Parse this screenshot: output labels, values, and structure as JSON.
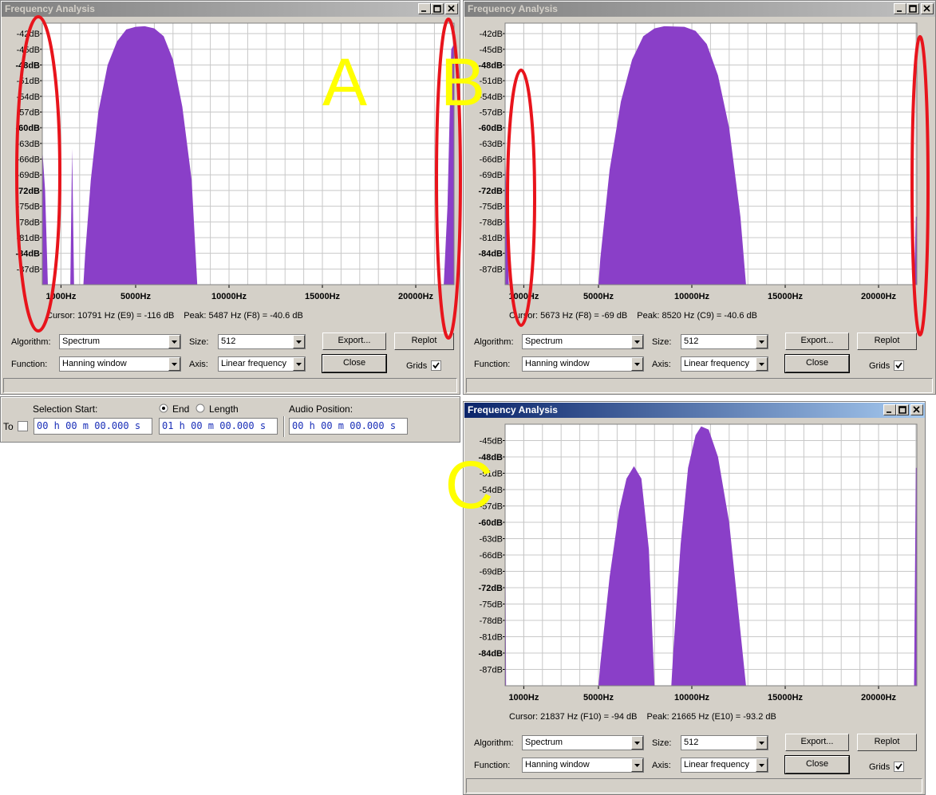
{
  "windows": [
    {
      "title": "Frequency Analysis",
      "label": "A",
      "plot": {
        "color": "#8a3fc8",
        "xlim": [
          0,
          22050
        ],
        "ylim": [
          -90,
          -40
        ],
        "yticks": [
          {
            "value": -42,
            "label": "-42dB"
          },
          {
            "value": -45,
            "label": "-45dB"
          },
          {
            "value": -48,
            "label": "-48dB"
          },
          {
            "value": -51,
            "label": "-51dB"
          },
          {
            "value": -54,
            "label": "-54dB"
          },
          {
            "value": -57,
            "label": "-57dB"
          },
          {
            "value": -60,
            "label": "-60dB"
          },
          {
            "value": -63,
            "label": "-63dB"
          },
          {
            "value": -66,
            "label": "-66dB"
          },
          {
            "value": -69,
            "label": "-69dB"
          },
          {
            "value": -72,
            "label": "-72dB"
          },
          {
            "value": -75,
            "label": "-75dB"
          },
          {
            "value": -78,
            "label": "-78dB"
          },
          {
            "value": -81,
            "label": "-81dB"
          },
          {
            "value": -84,
            "label": "-84dB"
          },
          {
            "value": -87,
            "label": "-87dB"
          }
        ],
        "xticks": [
          {
            "value": 1000,
            "label": "1000Hz"
          },
          {
            "value": 5000,
            "label": "5000Hz"
          },
          {
            "value": 10000,
            "label": "10000Hz"
          },
          {
            "value": 15000,
            "label": "15000Hz"
          },
          {
            "value": 20000,
            "label": "20000Hz"
          }
        ],
        "x": [
          0,
          150,
          300,
          1500,
          1600,
          1700,
          2200,
          2300,
          2600,
          3000,
          3500,
          4000,
          4500,
          5000,
          5487,
          6000,
          6500,
          7000,
          7500,
          8000,
          8300,
          21500,
          21700,
          21900,
          22050
        ],
        "values": [
          -64,
          -72,
          -90,
          -90,
          -64,
          -90,
          -90,
          -84,
          -70,
          -57,
          -48,
          -43.5,
          -41.2,
          -40.7,
          -40.6,
          -41,
          -42.5,
          -47,
          -56,
          -70,
          -90,
          -90,
          -75,
          -45,
          -44
        ]
      },
      "cursor": "Cursor: 10791 Hz (E9) = -116 dB",
      "peak": "Peak: 5487 Hz (F8) = -40.6 dB",
      "controls": {
        "algorithm_label": "Algorithm:",
        "algorithm": "Spectrum",
        "size_label": "Size:",
        "size": "512",
        "export": "Export...",
        "replot": "Replot",
        "function_label": "Function:",
        "function": "Hanning window",
        "axis_label": "Axis:",
        "axis": "Linear frequency",
        "close": "Close",
        "grids": "Grids"
      }
    },
    {
      "title": "Frequency Analysis",
      "label": "B",
      "plot": {
        "color": "#8a3fc8",
        "xlim": [
          0,
          22050
        ],
        "ylim": [
          -90,
          -40
        ],
        "yticks": [
          {
            "value": -42,
            "label": "-42dB"
          },
          {
            "value": -45,
            "label": "-45dB"
          },
          {
            "value": -48,
            "label": "-48dB"
          },
          {
            "value": -51,
            "label": "-51dB"
          },
          {
            "value": -54,
            "label": "-54dB"
          },
          {
            "value": -57,
            "label": "-57dB"
          },
          {
            "value": -60,
            "label": "-60dB"
          },
          {
            "value": -63,
            "label": "-63dB"
          },
          {
            "value": -66,
            "label": "-66dB"
          },
          {
            "value": -69,
            "label": "-69dB"
          },
          {
            "value": -72,
            "label": "-72dB"
          },
          {
            "value": -75,
            "label": "-75dB"
          },
          {
            "value": -78,
            "label": "-78dB"
          },
          {
            "value": -81,
            "label": "-81dB"
          },
          {
            "value": -84,
            "label": "-84dB"
          },
          {
            "value": -87,
            "label": "-87dB"
          }
        ],
        "xticks": [
          {
            "value": 1000,
            "label": "1000Hz"
          },
          {
            "value": 5000,
            "label": "5000Hz"
          },
          {
            "value": 10000,
            "label": "10000Hz"
          },
          {
            "value": 15000,
            "label": "15000Hz"
          },
          {
            "value": 20000,
            "label": "20000Hz"
          }
        ],
        "x": [
          0,
          100,
          200,
          5000,
          5100,
          5600,
          6200,
          6800,
          7400,
          8000,
          8520,
          9600,
          10200,
          10800,
          11400,
          12000,
          12600,
          12900,
          21900,
          22000,
          22050
        ],
        "values": [
          -63,
          -80,
          -90,
          -90,
          -85,
          -68,
          -55,
          -47,
          -42.5,
          -41,
          -40.6,
          -40.7,
          -41.5,
          -44,
          -50,
          -60,
          -77,
          -90,
          -90,
          -77,
          -77
        ]
      },
      "cursor": "Cursor: 5673 Hz (F8) = -69 dB",
      "peak": "Peak: 8520 Hz (C9) = -40.6 dB",
      "controls": {
        "algorithm_label": "Algorithm:",
        "algorithm": "Spectrum",
        "size_label": "Size:",
        "size": "512",
        "export": "Export...",
        "replot": "Replot",
        "function_label": "Function:",
        "function": "Hanning window",
        "axis_label": "Axis:",
        "axis": "Linear frequency",
        "close": "Close",
        "grids": "Grids"
      }
    },
    {
      "title": "Frequency Analysis",
      "label": "C",
      "plot": {
        "color": "#8a3fc8",
        "xlim": [
          0,
          22050
        ],
        "ylim": [
          -90,
          -42
        ],
        "yticks": [
          {
            "value": -45,
            "label": "-45dB"
          },
          {
            "value": -48,
            "label": "-48dB"
          },
          {
            "value": -51,
            "label": "-51dB"
          },
          {
            "value": -54,
            "label": "-54dB"
          },
          {
            "value": -57,
            "label": "-57dB"
          },
          {
            "value": -60,
            "label": "-60dB"
          },
          {
            "value": -63,
            "label": "-63dB"
          },
          {
            "value": -66,
            "label": "-66dB"
          },
          {
            "value": -69,
            "label": "-69dB"
          },
          {
            "value": -72,
            "label": "-72dB"
          },
          {
            "value": -75,
            "label": "-75dB"
          },
          {
            "value": -78,
            "label": "-78dB"
          },
          {
            "value": -81,
            "label": "-81dB"
          },
          {
            "value": -84,
            "label": "-84dB"
          },
          {
            "value": -87,
            "label": "-87dB"
          }
        ],
        "xticks": [
          {
            "value": 1000,
            "label": "1000Hz"
          },
          {
            "value": 5000,
            "label": "5000Hz"
          },
          {
            "value": 10000,
            "label": "10000Hz"
          },
          {
            "value": 15000,
            "label": "15000Hz"
          },
          {
            "value": 20000,
            "label": "20000Hz"
          }
        ],
        "x": [
          0,
          50,
          5000,
          5100,
          5600,
          6100,
          6500,
          6900,
          7300,
          7700,
          8000,
          8900,
          9000,
          9400,
          9800,
          10200,
          10500,
          10900,
          11400,
          12000,
          12600,
          12900,
          21900,
          22000,
          22050
        ],
        "values": [
          -52,
          -90,
          -90,
          -86,
          -70,
          -58,
          -52,
          -49.7,
          -52,
          -65,
          -90,
          -90,
          -84,
          -64,
          -50,
          -44,
          -42.4,
          -43,
          -48,
          -60,
          -80,
          -90,
          -90,
          -50,
          -50
        ]
      },
      "cursor": "Cursor: 21837 Hz (F10) = -94 dB",
      "peak": "Peak: 21665 Hz (E10) = -93.2 dB",
      "controls": {
        "algorithm_label": "Algorithm:",
        "algorithm": "Spectrum",
        "size_label": "Size:",
        "size": "512",
        "export": "Export...",
        "replot": "Replot",
        "function_label": "Function:",
        "function": "Hanning window",
        "axis_label": "Axis:",
        "axis": "Linear frequency",
        "close": "Close",
        "grids": "Grids"
      }
    }
  ],
  "toolbar": {
    "selection_start": "Selection Start:",
    "end": "End",
    "length": "Length",
    "audio_position": "Audio Position:",
    "to": "To",
    "start_time": "00 h 00 m 00.000 s",
    "end_time": "01 h 00 m 00.000 s",
    "position_time": "00 h 00 m 00.000 s"
  }
}
